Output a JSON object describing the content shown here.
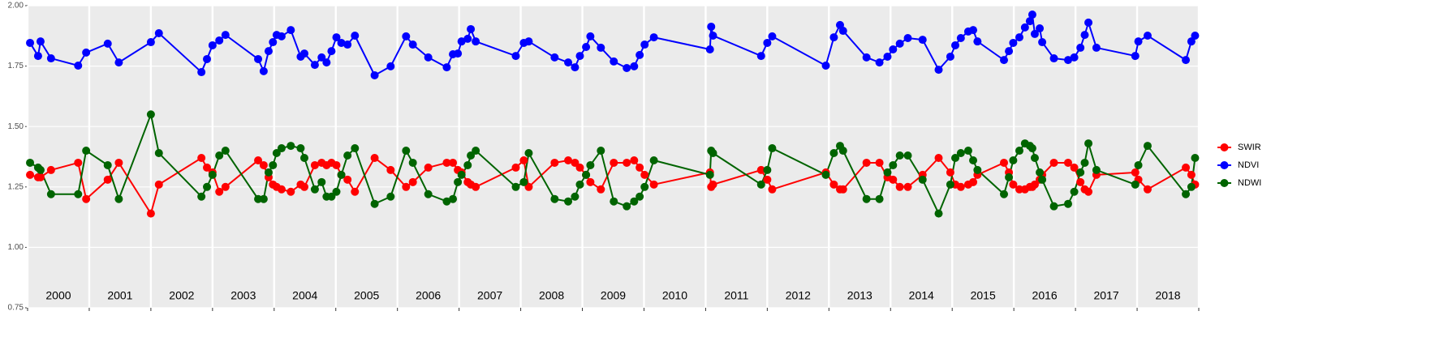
{
  "chart_data": {
    "type": "line",
    "x": [
      2000.04,
      2000.17,
      2000.21,
      2000.38,
      2000.82,
      2000.95,
      2001.3,
      2001.48,
      2002.0,
      2002.13,
      2002.82,
      2002.91,
      2003.0,
      2003.11,
      2003.21,
      2003.74,
      2003.83,
      2003.91,
      2003.98,
      2004.04,
      2004.12,
      2004.27,
      2004.43,
      2004.49,
      2004.66,
      2004.77,
      2004.85,
      2004.93,
      2005.01,
      2005.09,
      2005.19,
      2005.31,
      2005.63,
      2005.89,
      2006.14,
      2006.25,
      2006.5,
      2006.8,
      2006.9,
      2006.98,
      2007.04,
      2007.14,
      2007.19,
      2007.27,
      2007.92,
      2008.05,
      2008.13,
      2008.55,
      2008.77,
      2008.88,
      2008.96,
      2009.06,
      2009.13,
      2009.3,
      2009.51,
      2009.72,
      2009.84,
      2009.93,
      2010.01,
      2010.16,
      2011.07,
      2011.09,
      2011.12,
      2011.9,
      2012.0,
      2012.08,
      2012.95,
      2013.08,
      2013.18,
      2013.23,
      2013.61,
      2013.82,
      2013.95,
      2014.04,
      2014.15,
      2014.28,
      2014.52,
      2014.78,
      2014.97,
      2015.05,
      2015.14,
      2015.26,
      2015.34,
      2015.41,
      2015.84,
      2015.92,
      2015.99,
      2016.09,
      2016.18,
      2016.26,
      2016.3,
      2016.34,
      2016.42,
      2016.46,
      2016.65,
      2016.88,
      2016.98,
      2017.08,
      2017.15,
      2017.21,
      2017.34,
      2017.97,
      2018.02,
      2018.17,
      2018.79,
      2018.88,
      2018.94
    ],
    "series": [
      {
        "name": "SWIR",
        "color": "#ff0000",
        "values": [
          1.3,
          1.29,
          1.29,
          1.32,
          1.35,
          1.2,
          1.28,
          1.35,
          1.14,
          1.26,
          1.37,
          1.33,
          1.31,
          1.23,
          1.25,
          1.36,
          1.34,
          1.29,
          1.26,
          1.25,
          1.24,
          1.23,
          1.26,
          1.25,
          1.34,
          1.35,
          1.34,
          1.35,
          1.34,
          1.3,
          1.28,
          1.23,
          1.37,
          1.32,
          1.25,
          1.27,
          1.33,
          1.35,
          1.35,
          1.32,
          1.31,
          1.27,
          1.26,
          1.25,
          1.33,
          1.36,
          1.25,
          1.35,
          1.36,
          1.35,
          1.33,
          1.3,
          1.27,
          1.24,
          1.35,
          1.35,
          1.36,
          1.33,
          1.3,
          1.26,
          1.31,
          1.25,
          1.26,
          1.32,
          1.28,
          1.24,
          1.31,
          1.26,
          1.24,
          1.24,
          1.35,
          1.35,
          1.29,
          1.28,
          1.25,
          1.25,
          1.3,
          1.37,
          1.31,
          1.26,
          1.25,
          1.26,
          1.27,
          1.3,
          1.35,
          1.31,
          1.26,
          1.24,
          1.24,
          1.25,
          1.25,
          1.26,
          1.28,
          1.3,
          1.35,
          1.35,
          1.33,
          1.27,
          1.24,
          1.23,
          1.3,
          1.31,
          1.28,
          1.24,
          1.33,
          1.3,
          1.26
        ]
      },
      {
        "name": "NDVI",
        "color": "#0000ff",
        "values": [
          1.846,
          1.792,
          1.852,
          1.782,
          1.752,
          1.806,
          1.843,
          1.765,
          1.849,
          1.886,
          1.725,
          1.779,
          1.836,
          1.856,
          1.879,
          1.779,
          1.729,
          1.812,
          1.849,
          1.879,
          1.873,
          1.899,
          1.789,
          1.802,
          1.755,
          1.786,
          1.765,
          1.812,
          1.869,
          1.846,
          1.839,
          1.876,
          1.712,
          1.749,
          1.873,
          1.839,
          1.786,
          1.745,
          1.799,
          1.802,
          1.852,
          1.863,
          1.903,
          1.852,
          1.792,
          1.846,
          1.852,
          1.786,
          1.765,
          1.745,
          1.792,
          1.829,
          1.873,
          1.826,
          1.769,
          1.742,
          1.749,
          1.796,
          1.839,
          1.869,
          1.819,
          1.913,
          1.876,
          1.792,
          1.846,
          1.873,
          1.752,
          1.869,
          1.92,
          1.896,
          1.786,
          1.765,
          1.789,
          1.819,
          1.843,
          1.866,
          1.859,
          1.735,
          1.789,
          1.836,
          1.866,
          1.893,
          1.899,
          1.852,
          1.775,
          1.812,
          1.846,
          1.869,
          1.91,
          1.936,
          1.963,
          1.883,
          1.906,
          1.849,
          1.782,
          1.775,
          1.786,
          1.826,
          1.879,
          1.93,
          1.826,
          1.792,
          1.852,
          1.876,
          1.775,
          1.852,
          1.876
        ]
      },
      {
        "name": "NDWI",
        "color": "#006400",
        "values": [
          1.35,
          1.33,
          1.32,
          1.22,
          1.22,
          1.4,
          1.34,
          1.2,
          1.55,
          1.39,
          1.21,
          1.25,
          1.3,
          1.38,
          1.4,
          1.2,
          1.2,
          1.31,
          1.34,
          1.39,
          1.41,
          1.42,
          1.41,
          1.37,
          1.24,
          1.27,
          1.21,
          1.21,
          1.23,
          1.3,
          1.38,
          1.41,
          1.18,
          1.21,
          1.4,
          1.35,
          1.22,
          1.19,
          1.2,
          1.27,
          1.3,
          1.34,
          1.38,
          1.4,
          1.25,
          1.27,
          1.39,
          1.2,
          1.19,
          1.21,
          1.26,
          1.3,
          1.34,
          1.4,
          1.19,
          1.17,
          1.19,
          1.21,
          1.25,
          1.36,
          1.3,
          1.4,
          1.39,
          1.26,
          1.32,
          1.41,
          1.3,
          1.39,
          1.42,
          1.4,
          1.2,
          1.2,
          1.31,
          1.34,
          1.38,
          1.38,
          1.28,
          1.14,
          1.26,
          1.37,
          1.39,
          1.4,
          1.36,
          1.32,
          1.22,
          1.29,
          1.36,
          1.4,
          1.43,
          1.42,
          1.41,
          1.37,
          1.31,
          1.28,
          1.17,
          1.18,
          1.23,
          1.31,
          1.35,
          1.43,
          1.32,
          1.26,
          1.34,
          1.42,
          1.22,
          1.25,
          1.37
        ]
      }
    ],
    "xlim": [
      2000,
      2019
    ],
    "xbreaks": [
      2000,
      2001,
      2002,
      2003,
      2004,
      2005,
      2006,
      2007,
      2008,
      2009,
      2010,
      2011,
      2012,
      2013,
      2014,
      2015,
      2016,
      2017,
      2018,
      2019
    ],
    "xticks": [
      {
        "value": 2000.5,
        "label": "2000"
      },
      {
        "value": 2001.5,
        "label": "2001"
      },
      {
        "value": 2002.5,
        "label": "2002"
      },
      {
        "value": 2003.5,
        "label": "2003"
      },
      {
        "value": 2004.5,
        "label": "2004"
      },
      {
        "value": 2005.5,
        "label": "2005"
      },
      {
        "value": 2006.5,
        "label": "2006"
      },
      {
        "value": 2007.5,
        "label": "2007"
      },
      {
        "value": 2008.5,
        "label": "2008"
      },
      {
        "value": 2009.5,
        "label": "2009"
      },
      {
        "value": 2010.5,
        "label": "2010"
      },
      {
        "value": 2011.5,
        "label": "2011"
      },
      {
        "value": 2012.5,
        "label": "2012"
      },
      {
        "value": 2013.5,
        "label": "2013"
      },
      {
        "value": 2014.5,
        "label": "2014"
      },
      {
        "value": 2015.5,
        "label": "2015"
      },
      {
        "value": 2016.5,
        "label": "2016"
      },
      {
        "value": 2017.5,
        "label": "2017"
      },
      {
        "value": 2018.5,
        "label": "2018"
      }
    ],
    "ylim": [
      0.75,
      2.0
    ],
    "yticks": [
      {
        "value": 0.75,
        "label": "0.75"
      },
      {
        "value": 1,
        "label": "1.00"
      },
      {
        "value": 1.25,
        "label": "1.25"
      },
      {
        "value": 1.5,
        "label": "1.50"
      },
      {
        "value": 1.75,
        "label": "1.75"
      },
      {
        "value": 2,
        "label": "2.00"
      }
    ],
    "grid": true,
    "legend": "right"
  }
}
